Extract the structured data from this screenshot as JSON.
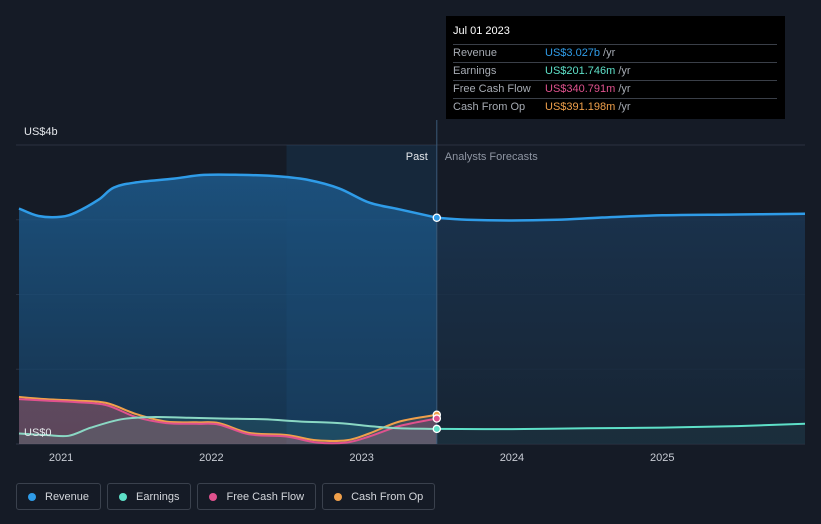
{
  "tooltip": {
    "date": "Jul 01 2023",
    "rows": [
      {
        "label": "Revenue",
        "value": "US$3.027b",
        "unit": "/yr",
        "color": "#2f9ce8"
      },
      {
        "label": "Earnings",
        "value": "US$201.746m",
        "unit": "/yr",
        "color": "#5ee0c8"
      },
      {
        "label": "Free Cash Flow",
        "value": "US$340.791m",
        "unit": "/yr",
        "color": "#e0528e"
      },
      {
        "label": "Cash From Op",
        "value": "US$391.198m",
        "unit": "/yr",
        "color": "#f0a04b"
      }
    ]
  },
  "legend": [
    {
      "label": "Revenue",
      "color": "#2f9ce8"
    },
    {
      "label": "Earnings",
      "color": "#5ee0c8"
    },
    {
      "label": "Free Cash Flow",
      "color": "#e0528e"
    },
    {
      "label": "Cash From Op",
      "color": "#f0a04b"
    }
  ],
  "chart_data": {
    "type": "area",
    "y_axis_labels": [
      {
        "value": 4,
        "label": "US$4b"
      },
      {
        "value": 0,
        "label": "US$0"
      }
    ],
    "ylim": [
      0,
      4
    ],
    "xlim": [
      2020.7,
      2025.95
    ],
    "x_ticks": [
      2021,
      2022,
      2023,
      2024,
      2025
    ],
    "x_tick_labels": [
      "2021",
      "2022",
      "2023",
      "2024",
      "2025"
    ],
    "divider_x": 2023.5,
    "past_label": "Past",
    "forecast_label": "Analysts Forecasts",
    "series": [
      {
        "name": "Revenue",
        "color": "#2f9ce8",
        "points": [
          [
            2020.72,
            3.15
          ],
          [
            2020.85,
            3.05
          ],
          [
            2021.0,
            3.04
          ],
          [
            2021.1,
            3.1
          ],
          [
            2021.25,
            3.27
          ],
          [
            2021.35,
            3.43
          ],
          [
            2021.5,
            3.5
          ],
          [
            2021.75,
            3.55
          ],
          [
            2021.95,
            3.6
          ],
          [
            2022.2,
            3.6
          ],
          [
            2022.45,
            3.58
          ],
          [
            2022.65,
            3.53
          ],
          [
            2022.85,
            3.42
          ],
          [
            2023.05,
            3.23
          ],
          [
            2023.25,
            3.14
          ],
          [
            2023.5,
            3.027
          ]
        ]
      },
      {
        "name": "Revenue forecast",
        "color": "#2f9ce8",
        "points": [
          [
            2023.5,
            3.027
          ],
          [
            2023.7,
            3.0
          ],
          [
            2024.0,
            2.99
          ],
          [
            2024.3,
            3.0
          ],
          [
            2024.6,
            3.03
          ],
          [
            2025.0,
            3.06
          ],
          [
            2025.5,
            3.07
          ],
          [
            2025.95,
            3.08
          ]
        ]
      },
      {
        "name": "Earnings",
        "color": "#5ee0c8",
        "points": [
          [
            2020.72,
            0.14
          ],
          [
            2020.9,
            0.12
          ],
          [
            2021.05,
            0.11
          ],
          [
            2021.2,
            0.22
          ],
          [
            2021.4,
            0.33
          ],
          [
            2021.6,
            0.36
          ],
          [
            2021.85,
            0.35
          ],
          [
            2022.1,
            0.34
          ],
          [
            2022.35,
            0.33
          ],
          [
            2022.6,
            0.3
          ],
          [
            2022.85,
            0.28
          ],
          [
            2023.05,
            0.24
          ],
          [
            2023.25,
            0.21
          ],
          [
            2023.5,
            0.2017
          ]
        ]
      },
      {
        "name": "Earnings forecast",
        "color": "#5ee0c8",
        "points": [
          [
            2023.5,
            0.2017
          ],
          [
            2024.0,
            0.2
          ],
          [
            2024.5,
            0.21
          ],
          [
            2025.0,
            0.22
          ],
          [
            2025.5,
            0.24
          ],
          [
            2025.95,
            0.27
          ]
        ]
      },
      {
        "name": "Free Cash Flow",
        "color": "#e0528e",
        "points": [
          [
            2020.72,
            0.6
          ],
          [
            2020.9,
            0.58
          ],
          [
            2021.1,
            0.56
          ],
          [
            2021.3,
            0.52
          ],
          [
            2021.5,
            0.36
          ],
          [
            2021.7,
            0.28
          ],
          [
            2021.9,
            0.27
          ],
          [
            2022.05,
            0.26
          ],
          [
            2022.25,
            0.13
          ],
          [
            2022.5,
            0.1
          ],
          [
            2022.7,
            0.02
          ],
          [
            2022.9,
            0.02
          ],
          [
            2023.05,
            0.1
          ],
          [
            2023.25,
            0.24
          ],
          [
            2023.5,
            0.3408
          ]
        ]
      },
      {
        "name": "Cash From Op",
        "color": "#f0a04b",
        "points": [
          [
            2020.72,
            0.63
          ],
          [
            2020.9,
            0.6
          ],
          [
            2021.1,
            0.58
          ],
          [
            2021.3,
            0.55
          ],
          [
            2021.5,
            0.4
          ],
          [
            2021.7,
            0.3
          ],
          [
            2021.9,
            0.29
          ],
          [
            2022.05,
            0.28
          ],
          [
            2022.25,
            0.15
          ],
          [
            2022.5,
            0.12
          ],
          [
            2022.7,
            0.05
          ],
          [
            2022.9,
            0.05
          ],
          [
            2023.05,
            0.14
          ],
          [
            2023.25,
            0.3
          ],
          [
            2023.5,
            0.3912
          ]
        ]
      }
    ]
  }
}
